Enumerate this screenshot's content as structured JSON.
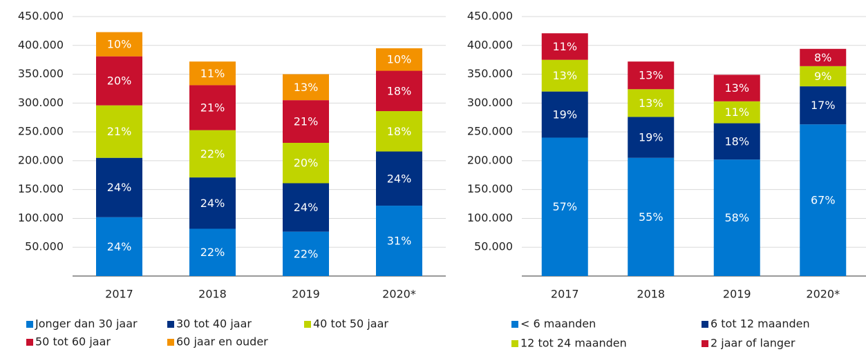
{
  "chart_data": [
    {
      "type": "bar",
      "stacked": true,
      "grid": true,
      "categories": [
        "2017",
        "2018",
        "2019",
        "2020*"
      ],
      "ylim": [
        0,
        450000
      ],
      "yticks": [
        {
          "value": 50000,
          "label": "50.000"
        },
        {
          "value": 100000,
          "label": "100.000"
        },
        {
          "value": 150000,
          "label": "150.000"
        },
        {
          "value": 200000,
          "label": "200.000"
        },
        {
          "value": 250000,
          "label": "250.000"
        },
        {
          "value": 300000,
          "label": "300.000"
        },
        {
          "value": 350000,
          "label": "350.000"
        },
        {
          "value": 400000,
          "label": "400.000"
        },
        {
          "value": 450000,
          "label": "450.000"
        }
      ],
      "series": [
        {
          "name": "Jonger dan 30 jaar",
          "color": "#0078d2",
          "values": [
            102000,
            82000,
            77000,
            122000
          ],
          "value_labels": [
            "24%",
            "22%",
            "22%",
            "31%"
          ]
        },
        {
          "name": "30 tot 40 jaar",
          "color": "#003082",
          "values": [
            103000,
            89000,
            84000,
            94000
          ],
          "value_labels": [
            "24%",
            "24%",
            "24%",
            "24%"
          ]
        },
        {
          "name": "40 tot 50 jaar",
          "color": "#c0d400",
          "values": [
            91000,
            82000,
            70000,
            70000
          ],
          "value_labels": [
            "21%",
            "22%",
            "20%",
            "18%"
          ]
        },
        {
          "name": "50 tot 60 jaar",
          "color": "#c8102e",
          "values": [
            85000,
            78000,
            74000,
            70000
          ],
          "value_labels": [
            "20%",
            "21%",
            "21%",
            "18%"
          ]
        },
        {
          "name": "60 jaar en ouder",
          "color": "#f39200",
          "values": [
            42000,
            41000,
            45000,
            39000
          ],
          "value_labels": [
            "10%",
            "11%",
            "13%",
            "10%"
          ]
        }
      ]
    },
    {
      "type": "bar",
      "stacked": true,
      "grid": true,
      "categories": [
        "2017",
        "2018",
        "2019",
        "2020*"
      ],
      "ylim": [
        0,
        450000
      ],
      "yticks": [
        {
          "value": 50000,
          "label": "50.000"
        },
        {
          "value": 100000,
          "label": "100.000"
        },
        {
          "value": 150000,
          "label": "150.000"
        },
        {
          "value": 200000,
          "label": "200.000"
        },
        {
          "value": 250000,
          "label": "250.000"
        },
        {
          "value": 300000,
          "label": "300.000"
        },
        {
          "value": 350000,
          "label": "350.000"
        },
        {
          "value": 400000,
          "label": "400.000"
        },
        {
          "value": 450000,
          "label": "450.000"
        }
      ],
      "series": [
        {
          "name": "< 6 maanden",
          "color": "#0078d2",
          "values": [
            240000,
            205000,
            202000,
            263000
          ],
          "value_labels": [
            "57%",
            "55%",
            "58%",
            "67%"
          ]
        },
        {
          "name": "6 tot 12 maanden",
          "color": "#003082",
          "values": [
            80000,
            71000,
            63000,
            66000
          ],
          "value_labels": [
            "19%",
            "19%",
            "18%",
            "17%"
          ]
        },
        {
          "name": "12 tot 24 maanden",
          "color": "#c0d400",
          "values": [
            55000,
            48000,
            38000,
            35000
          ],
          "value_labels": [
            "13%",
            "13%",
            "11%",
            "9%"
          ]
        },
        {
          "name": "2 jaar of langer",
          "color": "#c8102e",
          "values": [
            46000,
            48000,
            46000,
            30000
          ],
          "value_labels": [
            "11%",
            "13%",
            "13%",
            "8%"
          ]
        }
      ]
    }
  ]
}
